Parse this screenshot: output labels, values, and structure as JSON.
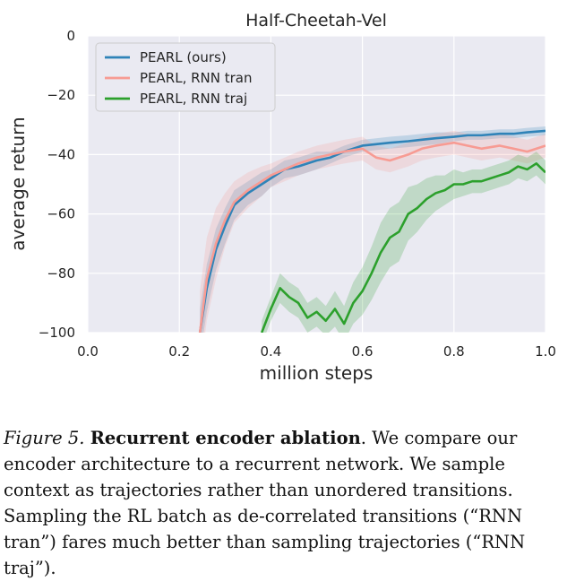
{
  "chart_data": {
    "type": "line",
    "title": "Half-Cheetah-Vel",
    "xlabel": "million steps",
    "ylabel": "average return",
    "xlim": [
      0.0,
      1.0
    ],
    "ylim": [
      -100,
      0
    ],
    "xticks": [
      "0.0",
      "0.2",
      "0.4",
      "0.6",
      "0.8",
      "1.0"
    ],
    "yticks": [
      "0",
      "−20",
      "−40",
      "−60",
      "−80",
      "−100"
    ],
    "grid": true,
    "legend_position": "top-left",
    "series": [
      {
        "name": "PEARL (ours)",
        "color": "#2f83b8",
        "x": [
          0.245,
          0.26,
          0.28,
          0.3,
          0.32,
          0.35,
          0.38,
          0.4,
          0.43,
          0.46,
          0.5,
          0.53,
          0.56,
          0.6,
          0.63,
          0.66,
          0.7,
          0.73,
          0.76,
          0.8,
          0.83,
          0.86,
          0.9,
          0.93,
          0.96,
          1.0
        ],
        "y": [
          -100,
          -85,
          -72,
          -64,
          -57,
          -53,
          -50,
          -48,
          -45,
          -44,
          -42,
          -41,
          -39,
          -37,
          -36.5,
          -36,
          -35.5,
          -35,
          -34.5,
          -34,
          -33.5,
          -33.5,
          -33,
          -33,
          -32.5,
          -32
        ],
        "band": [
          8,
          8,
          7,
          6,
          5,
          4,
          4,
          3,
          3,
          3,
          3,
          2,
          2,
          2,
          2,
          2,
          2,
          2,
          2,
          1.5,
          1.5,
          1.5,
          1.5,
          1.5,
          1.5,
          1.5
        ]
      },
      {
        "name": "PEARL, RNN tran",
        "color": "#f79b93",
        "x": [
          0.245,
          0.26,
          0.28,
          0.3,
          0.32,
          0.35,
          0.38,
          0.4,
          0.43,
          0.46,
          0.5,
          0.53,
          0.56,
          0.6,
          0.63,
          0.66,
          0.7,
          0.73,
          0.76,
          0.8,
          0.83,
          0.86,
          0.9,
          0.93,
          0.96,
          1.0
        ],
        "y": [
          -100,
          -82,
          -70,
          -62,
          -56,
          -52,
          -49,
          -47,
          -45,
          -43,
          -41,
          -40,
          -39,
          -38,
          -41,
          -42,
          -40,
          -38,
          -37,
          -36,
          -37,
          -38,
          -37,
          -38,
          -39,
          -37
        ],
        "band": [
          14,
          14,
          12,
          9,
          7,
          6,
          5,
          4,
          4,
          4,
          4,
          4,
          4,
          4,
          4,
          4,
          4,
          4,
          4,
          4,
          4,
          4,
          4,
          4,
          4,
          4
        ]
      },
      {
        "name": "PEARL, RNN traj",
        "color": "#2ca02c",
        "x": [
          0.38,
          0.4,
          0.42,
          0.44,
          0.46,
          0.48,
          0.5,
          0.52,
          0.54,
          0.56,
          0.58,
          0.6,
          0.62,
          0.64,
          0.66,
          0.68,
          0.7,
          0.72,
          0.74,
          0.76,
          0.78,
          0.8,
          0.82,
          0.84,
          0.86,
          0.88,
          0.9,
          0.92,
          0.94,
          0.96,
          0.98,
          1.0
        ],
        "y": [
          -100,
          -92,
          -85,
          -88,
          -90,
          -95,
          -93,
          -96,
          -92,
          -97,
          -90,
          -86,
          -80,
          -73,
          -68,
          -66,
          -60,
          -58,
          -55,
          -53,
          -52,
          -50,
          -50,
          -49,
          -49,
          -48,
          -47,
          -46,
          -44,
          -45,
          -43,
          -46
        ],
        "band": [
          4,
          4,
          5,
          5,
          5,
          5,
          5,
          5,
          6,
          6,
          7,
          8,
          9,
          10,
          10,
          10,
          9,
          8,
          7,
          6,
          5,
          5,
          4,
          4,
          4,
          4,
          4,
          4,
          4,
          4,
          4,
          4
        ]
      }
    ]
  },
  "caption": {
    "figure_label": "Figure 5.",
    "heading": "Recurrent encoder ablation",
    "body": ". We compare our encoder architecture to a recurrent network. We sample context as trajectories rather than unordered transitions. Sampling the RL batch as de-correlated transitions (“RNN tran”) fares much better than sampling trajectories (“RNN traj”)."
  }
}
